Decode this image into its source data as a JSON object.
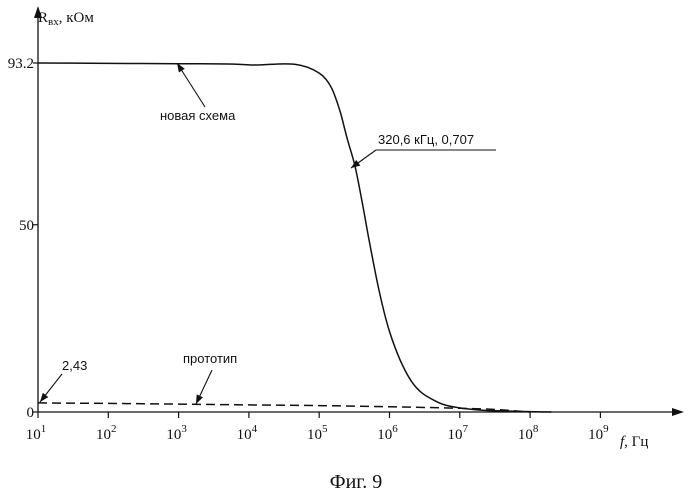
{
  "chart_data": {
    "type": "line",
    "ylabel": {
      "base": "R",
      "sub": "вх",
      "unit": ", кОм"
    },
    "xlabel": {
      "var": "f",
      "unit": ", Гц"
    },
    "caption": "Фиг. 9",
    "x_scale": "log",
    "xlim": [
      10,
      3000000000
    ],
    "ylim": [
      0,
      93.2
    ],
    "x_ticks": [
      {
        "base": "10",
        "exp": "1",
        "value": 10
      },
      {
        "base": "10",
        "exp": "2",
        "value": 100
      },
      {
        "base": "10",
        "exp": "3",
        "value": 1000
      },
      {
        "base": "10",
        "exp": "4",
        "value": 10000
      },
      {
        "base": "10",
        "exp": "5",
        "value": 100000
      },
      {
        "base": "10",
        "exp": "6",
        "value": 1000000
      },
      {
        "base": "10",
        "exp": "7",
        "value": 10000000
      },
      {
        "base": "10",
        "exp": "8",
        "value": 100000000
      },
      {
        "base": "10",
        "exp": "9",
        "value": 1000000000
      }
    ],
    "y_ticks": [
      {
        "label": "0",
        "value": 0
      },
      {
        "label": "50",
        "value": 50
      },
      {
        "label": "93.2",
        "value": 93.2
      }
    ],
    "grid": false,
    "series": [
      {
        "name": "новая схема",
        "style": "solid",
        "x": [
          10,
          100,
          1000,
          10000,
          100000,
          150000,
          200000,
          250000,
          320600,
          400000,
          500000,
          700000,
          1000000,
          2000000,
          5000000,
          10000000,
          20000000,
          50000000,
          100000000,
          200000000
        ],
        "y": [
          93.2,
          93.1,
          93.0,
          92.7,
          90.5,
          86.5,
          80.0,
          73.0,
          65.9,
          57.0,
          47.0,
          33.0,
          21.5,
          8.5,
          2.5,
          1.1,
          0.5,
          0.25,
          0.1,
          0.0
        ]
      },
      {
        "name": "прототип",
        "style": "dashed",
        "x": [
          10,
          100,
          1000,
          10000,
          100000,
          1000000,
          10000000,
          30000000,
          100000000
        ],
        "y": [
          2.43,
          2.3,
          2.1,
          1.9,
          1.7,
          1.4,
          1.0,
          0.7,
          0.0
        ]
      }
    ],
    "annotations": [
      {
        "text": "новая схема",
        "target_series": 0
      },
      {
        "text": "320,6 кГц, 0,707",
        "target_series": 0
      },
      {
        "text": "прототип",
        "target_series": 1
      },
      {
        "text": "2,43",
        "target_series": 1
      }
    ]
  }
}
